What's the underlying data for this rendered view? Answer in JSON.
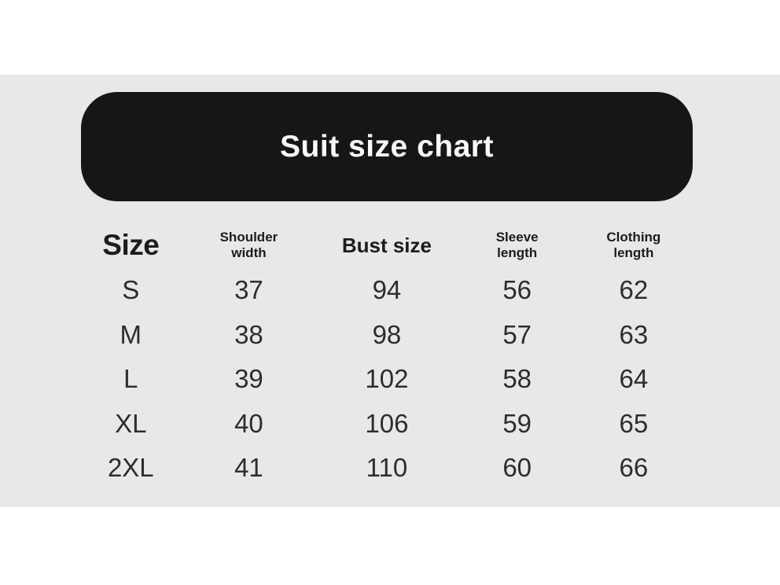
{
  "title": "Suit size chart",
  "colors": {
    "page_background": "#ffffff",
    "panel_background": "#e9e8e8",
    "banner_background": "#161616",
    "banner_text": "#fbfbfb",
    "header_text": "#1c1c1c",
    "data_text": "#2d2d2d"
  },
  "chart_data": {
    "type": "table",
    "title": "Suit size chart",
    "columns": [
      "Size",
      "Shoulder width",
      "Bust size",
      "Sleeve length",
      "Clothing length"
    ],
    "rows": [
      [
        "S",
        37,
        94,
        56,
        62
      ],
      [
        "M",
        38,
        98,
        57,
        63
      ],
      [
        "L",
        39,
        102,
        58,
        64
      ],
      [
        "XL",
        40,
        106,
        59,
        65
      ],
      [
        "2XL",
        41,
        110,
        60,
        66
      ]
    ]
  }
}
